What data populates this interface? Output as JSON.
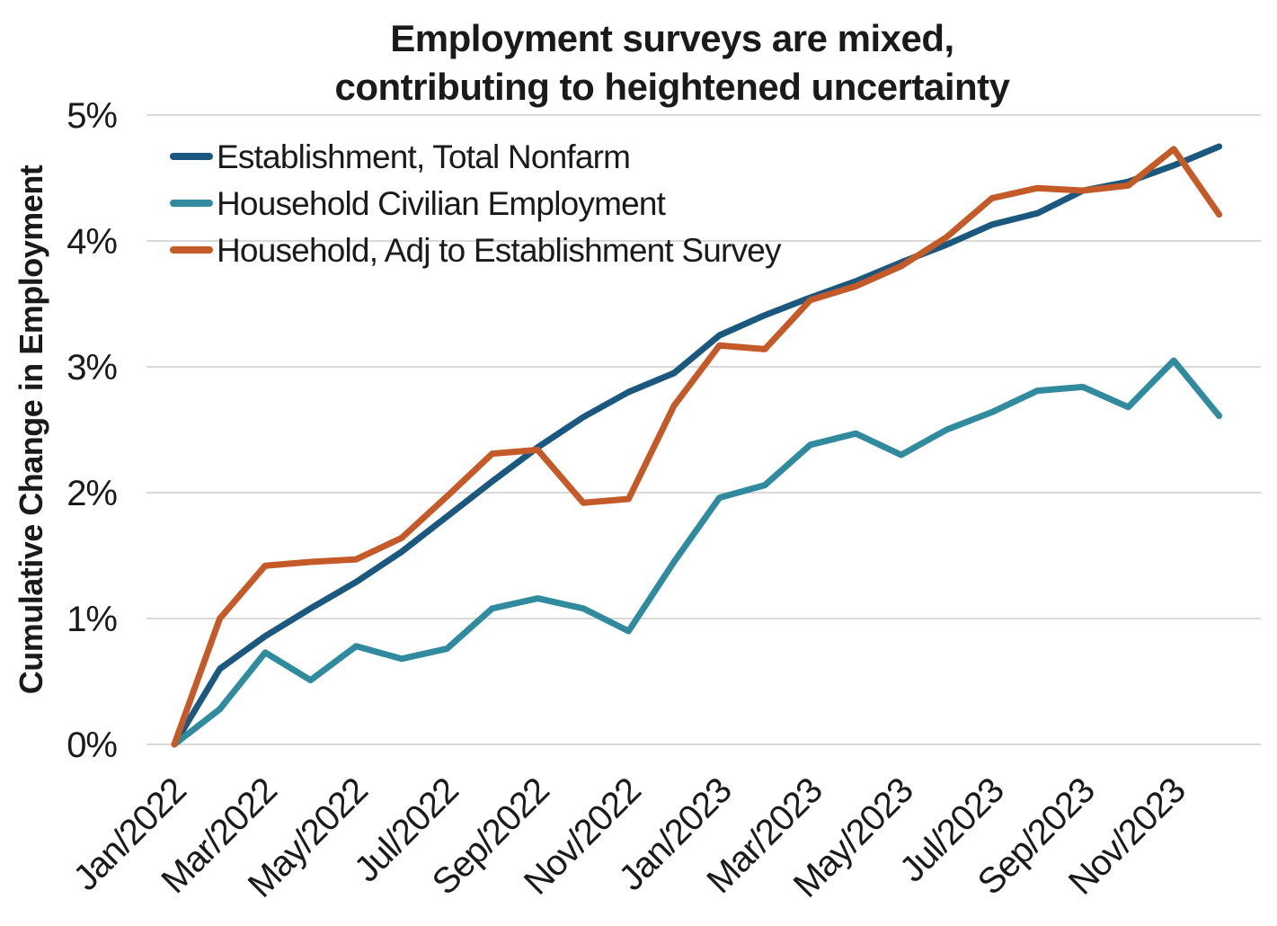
{
  "chart_data": {
    "type": "line",
    "title": "Employment surveys are mixed, contributing to heightened uncertainty",
    "title_lines": [
      "Employment surveys are mixed,",
      "contributing to heightened uncertainty"
    ],
    "ylabel": "Cumulative Change in Employment",
    "xlabel": "",
    "ylim": [
      0,
      5
    ],
    "grid": "horizontal",
    "legend_position": "top-left-inside",
    "y_tick_labels": [
      "0%",
      "1%",
      "2%",
      "3%",
      "4%",
      "5%"
    ],
    "x_tick_labels": [
      "Jan/2022",
      "Mar/2022",
      "May/2022",
      "Jul/2022",
      "Sep/2022",
      "Nov/2022",
      "Jan/2023",
      "Mar/2023",
      "May/2023",
      "Jul/2023",
      "Sep/2023",
      "Nov/2023"
    ],
    "categories": [
      "Jan/2022",
      "Feb/2022",
      "Mar/2022",
      "Apr/2022",
      "May/2022",
      "Jun/2022",
      "Jul/2022",
      "Aug/2022",
      "Sep/2022",
      "Oct/2022",
      "Nov/2022",
      "Dec/2022",
      "Jan/2023",
      "Feb/2023",
      "Mar/2023",
      "Apr/2023",
      "May/2023",
      "Jun/2023",
      "Jul/2023",
      "Aug/2023",
      "Sep/2023",
      "Oct/2023",
      "Nov/2023",
      "Dec/2023"
    ],
    "unit": "percent",
    "series": [
      {
        "name": "Establishment, Total Nonfarm",
        "color": "#1b587f",
        "values": [
          0.0,
          0.6,
          0.86,
          1.08,
          1.29,
          1.53,
          1.81,
          2.09,
          2.36,
          2.6,
          2.8,
          2.95,
          3.25,
          3.41,
          3.55,
          3.68,
          3.83,
          3.97,
          4.13,
          4.22,
          4.4,
          4.47,
          4.6,
          4.75
        ]
      },
      {
        "name": "Household Civilian Employment",
        "color": "#2f8b9d",
        "values": [
          0.0,
          0.28,
          0.73,
          0.51,
          0.78,
          0.68,
          0.76,
          1.08,
          1.16,
          1.08,
          0.9,
          1.45,
          1.96,
          2.06,
          2.38,
          2.47,
          2.3,
          2.5,
          2.64,
          2.81,
          2.84,
          2.68,
          3.05,
          2.61
        ]
      },
      {
        "name": "Household, Adj to Establishment Survey",
        "color": "#c45a28",
        "values": [
          0.0,
          1.0,
          1.42,
          1.45,
          1.47,
          1.64,
          1.97,
          2.31,
          2.34,
          1.92,
          1.95,
          2.69,
          3.17,
          3.14,
          3.53,
          3.64,
          3.8,
          4.03,
          4.34,
          4.42,
          4.4,
          4.44,
          4.73,
          4.21
        ]
      }
    ],
    "colors": {
      "gridline": "#d9d9d9",
      "text": "#1a1a1a"
    }
  }
}
